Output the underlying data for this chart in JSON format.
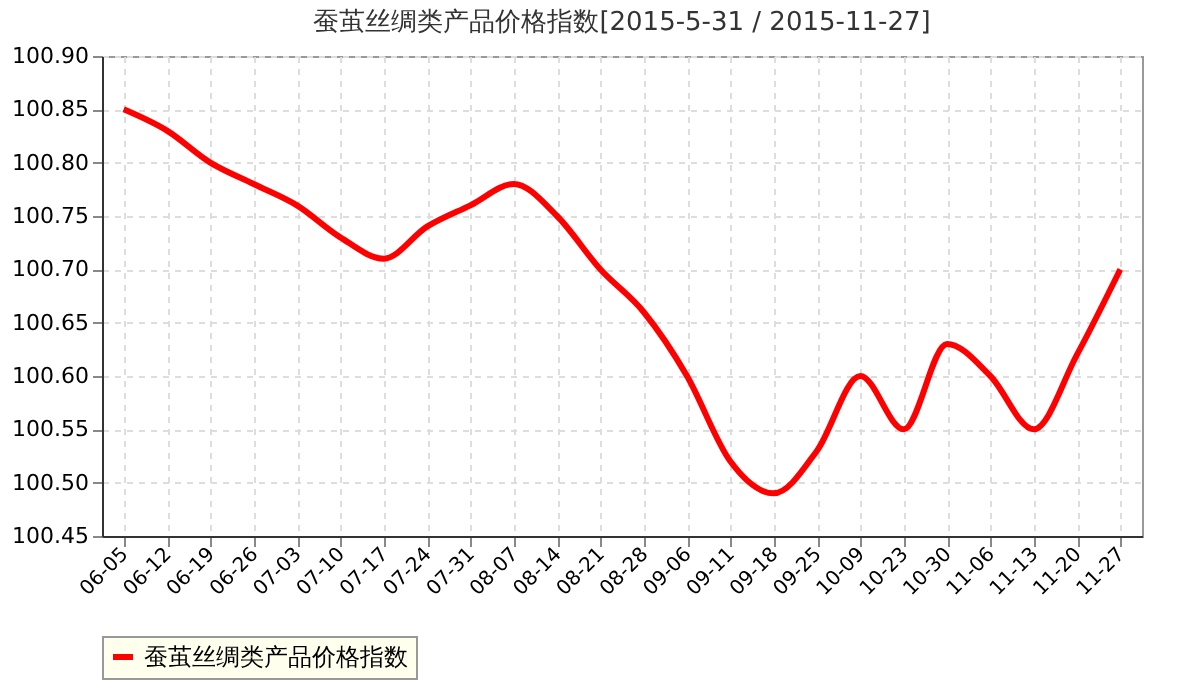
{
  "chart_data": {
    "type": "line",
    "title": "蚕茧丝绸类产品价格指数[2015-5-31 / 2015-11-27]",
    "categories": [
      "06-05",
      "06-12",
      "06-19",
      "06-26",
      "07-03",
      "07-10",
      "07-17",
      "07-24",
      "07-31",
      "08-07",
      "08-14",
      "08-21",
      "08-28",
      "09-06",
      "09-11",
      "09-18",
      "09-25",
      "10-09",
      "10-23",
      "10-30",
      "11-06",
      "11-13",
      "11-20",
      "11-27"
    ],
    "series": [
      {
        "name": "蚕茧丝绸类产品价格指数",
        "color": "#ff0000",
        "values": [
          100.85,
          100.83,
          100.8,
          100.78,
          100.76,
          100.73,
          100.71,
          100.74,
          100.76,
          100.78,
          100.75,
          100.7,
          100.66,
          100.6,
          100.52,
          100.49,
          100.53,
          100.6,
          100.55,
          100.63,
          100.6,
          100.55,
          100.62,
          100.7
        ]
      }
    ],
    "ylim": [
      100.45,
      100.9
    ],
    "yticks": [
      {
        "value": 100.45,
        "label": "100.45"
      },
      {
        "value": 100.5,
        "label": "100.50"
      },
      {
        "value": 100.55,
        "label": "100.55"
      },
      {
        "value": 100.6,
        "label": "100.60"
      },
      {
        "value": 100.65,
        "label": "100.65"
      },
      {
        "value": 100.7,
        "label": "100.70"
      },
      {
        "value": 100.75,
        "label": "100.75"
      },
      {
        "value": 100.8,
        "label": "100.80"
      },
      {
        "value": 100.85,
        "label": "100.85"
      },
      {
        "value": 100.9,
        "label": "100.90"
      }
    ],
    "grid": true,
    "legend": "bottom",
    "marker": "none",
    "line_style": "solid"
  }
}
